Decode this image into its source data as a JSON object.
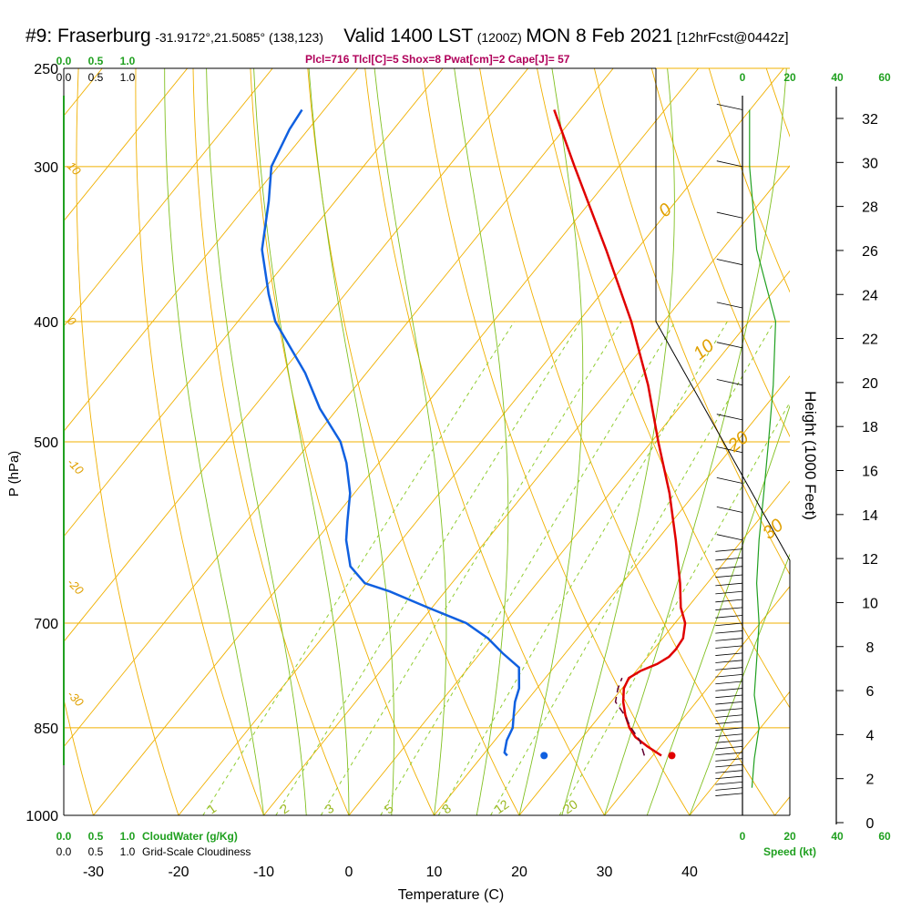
{
  "title": {
    "station": "#9: Fraserburg",
    "coords": "-31.9172°,21.5085° (138,123)",
    "valid": "Valid 1400 LST",
    "utc": "(1200Z)",
    "date": "MON 8 Feb 2021",
    "fcst": "[12hrFcst@0442z]"
  },
  "params_text": "Plcl=716 Tlcl[C]=5 Shox=8 Pwat[cm]=2 Cape[J]= 57",
  "colors": {
    "temperature": "#e00000",
    "dewpoint": "#1060e0",
    "parcel": "#600030",
    "isotherm": "#f0b000",
    "dry_adiabat": "#f0b000",
    "moist_adiabat": "#80c020",
    "mixing_ratio": "#90cc30",
    "green_text": "#20a020",
    "hodo_line": "#20a020"
  },
  "chart_data": {
    "type": "line",
    "subtype": "skew-t log-p sounding",
    "xlabel": "Temperature (C)",
    "ylabel": "P (hPa)",
    "right_label": "Height (1000 Feet)",
    "x_ticks": [
      "-30",
      "-20",
      "-10",
      "0",
      "10",
      "20",
      "30",
      "40"
    ],
    "x_tick_values": [
      -30,
      -20,
      -10,
      0,
      10,
      20,
      30,
      40
    ],
    "p_ticks": [
      "250",
      "300",
      "400",
      "500",
      "700",
      "850",
      "1000"
    ],
    "p_tick_values": [
      250,
      300,
      400,
      500,
      700,
      850,
      1000
    ],
    "height_ticks": [
      "0",
      "2",
      "4",
      "6",
      "8",
      "10",
      "12",
      "14",
      "16",
      "18",
      "20",
      "22",
      "24",
      "26",
      "28",
      "30",
      "32"
    ],
    "height_tick_values": [
      0,
      2,
      4,
      6,
      8,
      10,
      12,
      14,
      16,
      18,
      20,
      22,
      24,
      26,
      28,
      30,
      32
    ],
    "cloud_top_labels": [
      "0.0",
      "0.5",
      "1.0"
    ],
    "cloud_top_labels2": [
      "0.0",
      "0.5",
      "1.0"
    ],
    "cloud_bottom_labels": [
      "0.0",
      "0.5",
      "1.0"
    ],
    "cloud_bottom_labels2": [
      "0.0",
      "0.5",
      "1.0"
    ],
    "cloudwater_label": "CloudWater (g/Kg)",
    "cloudiness_label": "Grid-Scale Cloudiness",
    "speed_ticks_top": [
      "0",
      "20",
      "40",
      "60"
    ],
    "speed_ticks_bottom": [
      "0",
      "20",
      "40",
      "60"
    ],
    "speed_tick_values": [
      0,
      20,
      40,
      60
    ],
    "speed_label": "Speed (kt)",
    "mixing_ratio_labels": [
      "1",
      "2",
      "3",
      "5",
      "8",
      "12",
      "20"
    ],
    "mixing_ratio_values": [
      1,
      2,
      3,
      5,
      8,
      12,
      20
    ],
    "theta_labels": [
      "10",
      "0",
      "-10",
      "-20",
      "-30"
    ],
    "theta_label_pressures": [
      300,
      400,
      520,
      650,
      800
    ],
    "thetae_labels": [
      "0",
      "10",
      "20",
      "30"
    ],
    "thetae_label_pressures": [
      330,
      430,
      510,
      600
    ],
    "temperature_series": {
      "pressure": [
        895,
        880,
        865,
        850,
        830,
        810,
        790,
        775,
        765,
        755,
        745,
        735,
        720,
        700,
        680,
        650,
        600,
        550,
        500,
        450,
        400,
        350,
        300,
        270
      ],
      "temp": [
        31.0,
        28.5,
        26.2,
        24.6,
        22.9,
        21.4,
        20.2,
        19.8,
        20.5,
        21.8,
        22.5,
        22.6,
        22.4,
        21.2,
        19.2,
        16.8,
        12.2,
        7.0,
        0.8,
        -5.8,
        -13.8,
        -23.6,
        -35.2,
        -43.0
      ]
    },
    "dewpoint_series": {
      "pressure": [
        895,
        890,
        870,
        850,
        830,
        810,
        790,
        760,
        740,
        720,
        700,
        680,
        660,
        650,
        630,
        600,
        580,
        550,
        520,
        500,
        470,
        440,
        400,
        380,
        350,
        320,
        300,
        280,
        270
      ],
      "dewpoint": [
        12.9,
        12.3,
        11.4,
        10.9,
        9.8,
        8.7,
        7.9,
        5.9,
        2.6,
        -0.5,
        -4.5,
        -10.5,
        -16.5,
        -20.2,
        -23.5,
        -26.5,
        -28.1,
        -30.5,
        -33.8,
        -36.5,
        -42.1,
        -47.2,
        -55.6,
        -59.0,
        -64.0,
        -67.8,
        -70.8,
        -72.2,
        -72.6
      ]
    },
    "parcel_series": {
      "pressure": [
        895,
        870,
        850,
        830,
        810,
        790,
        775
      ],
      "temp": [
        29.0,
        27.0,
        24.8,
        22.8,
        20.5,
        19.5,
        19.0
      ]
    },
    "surface_temp": 31.8,
    "surface_dewpoint": 16.8,
    "surface_pressure": 895,
    "wind_speed_profile": {
      "pressure": [
        270,
        300,
        350,
        400,
        450,
        500,
        550,
        600,
        650,
        700,
        750,
        800,
        850,
        900,
        950
      ],
      "speed_kt": [
        3,
        3,
        6,
        14,
        13,
        11,
        9,
        7,
        6,
        7,
        6,
        5,
        7,
        5,
        4
      ]
    }
  }
}
